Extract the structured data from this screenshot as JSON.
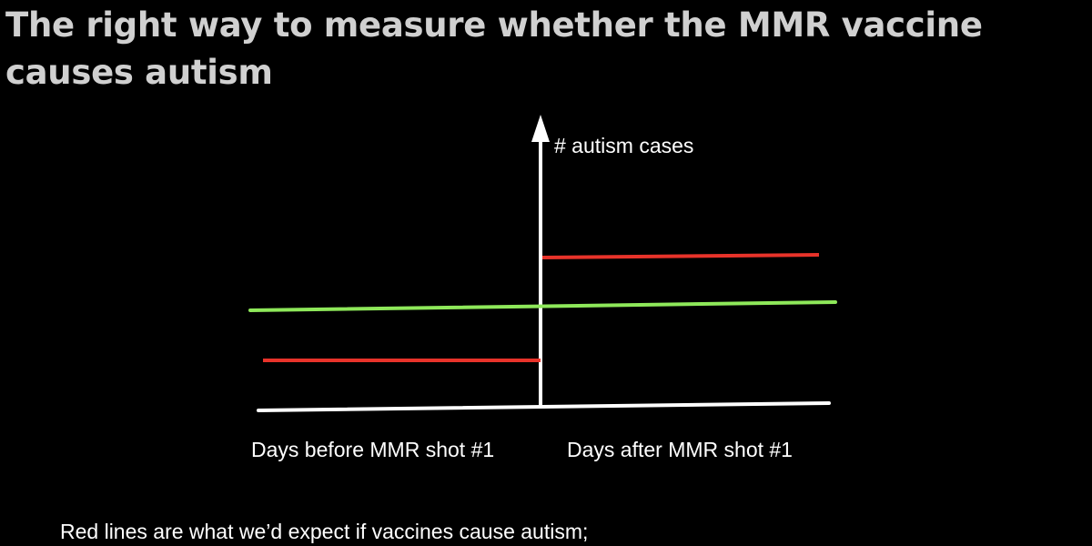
{
  "slide": {
    "title": "The right way to measure whether the MMR vaccine causes autism",
    "caption": "Red lines are what we’d expect if vaccines cause autism;"
  },
  "diagram": {
    "y_axis_label": "# autism cases",
    "x_label_before": "Days before MMR shot #1",
    "x_label_after": "Days after MMR shot #1"
  },
  "colors": {
    "background": "#000000",
    "title": "#d0d0d0",
    "axis": "#ffffff",
    "red_line": "#e8332a",
    "green_line": "#8ee85a"
  }
}
